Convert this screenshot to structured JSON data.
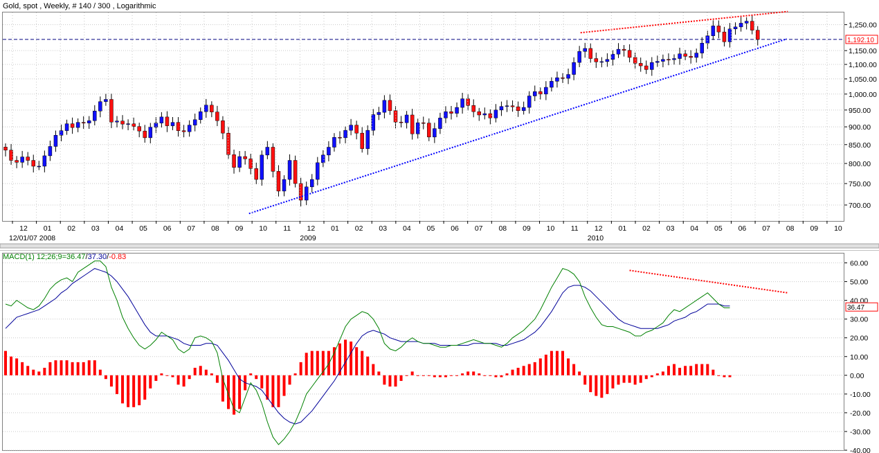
{
  "header": {
    "title": "Gold, spot , Weekly, # 140 / 300 , Logarithmic"
  },
  "colors": {
    "up_candle": "#1010ff",
    "down_candle": "#ff1010",
    "price_line": "#0000cc",
    "macd_line": "#008000",
    "signal_line": "#000099",
    "histogram": "#ff0000",
    "trendline_upper": "#ff0000",
    "trendline_lower": "#0000ff",
    "grid": "#c8c8c8"
  },
  "chart_data": [
    {
      "type": "candlestick",
      "title": "Gold, spot , Weekly, # 140 / 300 , Logarithmic",
      "scale": "logarithmic",
      "ylim": [
        665,
        1300
      ],
      "y_ticks": [
        700,
        750,
        800,
        850,
        900,
        950,
        1000,
        1050,
        1100,
        1150,
        1250
      ],
      "y_tick_labels": [
        "700.00",
        "750.00",
        "800.00",
        "850.00",
        "900.00",
        "950.00",
        "1,000.00",
        "1,050.00",
        "1,100.00",
        "1,150.00",
        "1,250.00"
      ],
      "last_price": 1192.1,
      "last_price_label": "1,192.10",
      "x_month_labels": [
        "12",
        "01",
        "02",
        "03",
        "04",
        "05",
        "06",
        "07",
        "08",
        "09",
        "10",
        "11",
        "12",
        "01",
        "02",
        "03",
        "04",
        "05",
        "06",
        "07",
        "08",
        "09",
        "10",
        "11",
        "12",
        "01",
        "02",
        "03",
        "04",
        "05",
        "06",
        "07",
        "08",
        "09",
        "10"
      ],
      "x_month_week": [
        0,
        4.3,
        8.6,
        12.9,
        17.2,
        21.5,
        25.8,
        30.1,
        34.4,
        38.7,
        43,
        47.3,
        51.6,
        55.9,
        60.2,
        64.5,
        68.8,
        73.1,
        77.4,
        81.7,
        86,
        90.3,
        94.6,
        98.9,
        103.2,
        107.5,
        111.8,
        116.1,
        120.4,
        124.7,
        129,
        133.3,
        137.6,
        141.9,
        146.2
      ],
      "x_sub_labels": [
        "12/01/07 2008",
        "2009",
        "2010"
      ],
      "x_sub_week": [
        0,
        51.6,
        103.2
      ],
      "week_start": "2007-12-01",
      "weekly_close": [
        835,
        808,
        803,
        817,
        808,
        793,
        793,
        820,
        845,
        876,
        889,
        909,
        898,
        913,
        911,
        918,
        947,
        976,
        983,
        914,
        917,
        908,
        909,
        901,
        888,
        869,
        899,
        911,
        929,
        903,
        913,
        889,
        886,
        905,
        921,
        945,
        965,
        944,
        918,
        882,
        823,
        790,
        818,
        812,
        787,
        760,
        822,
        843,
        780,
        732,
        760,
        808,
        750,
        711,
        742,
        760,
        802,
        822,
        843,
        870,
        869,
        890,
        905,
        882,
        839,
        890,
        936,
        943,
        980,
        948,
        914,
        912,
        935,
        880,
        912,
        911,
        871,
        895,
        926,
        945,
        940,
        958,
        985,
        964,
        945,
        935,
        939,
        926,
        950,
        961,
        963,
        960,
        948,
        958,
        994,
        1008,
        1000,
        1022,
        1042,
        1054,
        1052,
        1065,
        1107,
        1147,
        1158,
        1121,
        1109,
        1110,
        1118,
        1137,
        1155,
        1151,
        1125,
        1104,
        1095,
        1082,
        1107,
        1111,
        1118,
        1117,
        1121,
        1138,
        1129,
        1125,
        1141,
        1178,
        1206,
        1245,
        1221,
        1183,
        1233,
        1241,
        1256,
        1264,
        1228,
        1192
      ],
      "upper_trendline": {
        "from_week": 103.2,
        "from_price": 1218,
        "to_week": 140.4,
        "to_price": 1304
      },
      "lower_trendline": {
        "from_week": 43.7,
        "from_price": 681,
        "to_week": 140.2,
        "to_price": 1194
      }
    },
    {
      "type": "line",
      "title": "MACD(1) 12;26;9=36.47/37.30/-0.83",
      "title_parts": [
        "MACD(1) 12;26;9=",
        "36.47",
        "/",
        "37.30",
        "/",
        "-0.83"
      ],
      "ylim": [
        -40,
        65
      ],
      "y_ticks": [
        -40,
        -30,
        -20,
        -10,
        0,
        10,
        20,
        30,
        40,
        50,
        60
      ],
      "y_tick_labels": [
        "-40.00",
        "-30.00",
        "-20.00",
        "-10.00",
        "0.00",
        "10.00",
        "20.00",
        "30.00",
        "40.00",
        "50.00",
        "60.00"
      ],
      "last_value_label": "36.47",
      "series": [
        {
          "name": "MACD",
          "values": [
            38,
            37,
            40,
            38,
            36,
            35,
            37,
            41,
            46,
            49,
            51,
            52,
            50,
            55,
            57,
            59,
            61,
            61,
            58,
            47,
            40,
            31,
            25,
            20,
            16,
            14,
            16,
            19,
            23,
            21,
            19,
            14,
            12,
            14,
            20,
            21,
            20,
            18,
            12,
            -2,
            -10,
            -18,
            -20,
            -12,
            -4,
            -8,
            -15,
            -25,
            -33,
            -37,
            -34,
            -30,
            -25,
            -18,
            -10,
            -6,
            -2,
            2,
            6,
            12,
            19,
            26,
            30,
            32,
            34,
            33,
            30,
            25,
            17,
            14,
            13,
            15,
            18,
            20,
            18,
            17,
            17,
            16,
            15,
            15,
            16,
            16,
            17,
            18,
            19,
            18,
            17,
            17,
            16,
            15,
            17,
            20,
            22,
            24,
            27,
            30,
            35,
            41,
            47,
            52,
            57,
            56,
            54,
            50,
            42,
            36,
            31,
            27,
            26,
            26,
            25,
            24,
            23,
            21,
            21,
            23,
            24,
            26,
            28,
            32,
            35,
            34,
            36,
            38,
            40,
            42,
            44,
            41,
            38,
            36,
            36
          ]
        },
        {
          "name": "Signal",
          "values": [
            25,
            28,
            31,
            32,
            33,
            34,
            35,
            37,
            39,
            41,
            44,
            46,
            49,
            51,
            53,
            55,
            57,
            56,
            55,
            53,
            50,
            46,
            42,
            37,
            32,
            27,
            23,
            21,
            21,
            21,
            20,
            19,
            17,
            16,
            16,
            16,
            17,
            17,
            16,
            12,
            8,
            3,
            -2,
            -4,
            -5,
            -6,
            -8,
            -12,
            -16,
            -20,
            -23,
            -25,
            -26,
            -25,
            -22,
            -19,
            -15,
            -11,
            -7,
            -3,
            2,
            7,
            12,
            17,
            21,
            23,
            24,
            23,
            22,
            20,
            19,
            18,
            18,
            18,
            18,
            17,
            17,
            17,
            16,
            16,
            16,
            16,
            16,
            16,
            17,
            17,
            17,
            17,
            17,
            16,
            16,
            17,
            18,
            19,
            21,
            23,
            26,
            30,
            34,
            39,
            44,
            47,
            48,
            48,
            47,
            45,
            42,
            39,
            36,
            33,
            30,
            28,
            27,
            26,
            25,
            25,
            25,
            25,
            26,
            27,
            29,
            30,
            31,
            33,
            34,
            36,
            38,
            38,
            38,
            37,
            37
          ]
        },
        {
          "name": "Histogram",
          "values": [
            13,
            10,
            9,
            7,
            5,
            3,
            2,
            4,
            7,
            8,
            8,
            8,
            7,
            7,
            7,
            8,
            8,
            3,
            -2,
            -6,
            -10,
            -15,
            -17,
            -17,
            -16,
            -13,
            -7,
            -3,
            1,
            0,
            -1,
            -5,
            -6,
            -2,
            4,
            5,
            3,
            1,
            -4,
            -14,
            -18,
            -21,
            -18,
            -8,
            1,
            -2,
            -7,
            -13,
            -17,
            -17,
            -11,
            -5,
            1,
            7,
            12,
            13,
            13,
            13,
            13,
            15,
            17,
            19,
            18,
            15,
            13,
            10,
            6,
            2,
            -5,
            -6,
            -6,
            -3,
            0,
            2,
            0,
            0,
            0,
            -1,
            -1,
            -1,
            0,
            0,
            1,
            2,
            2,
            1,
            0,
            0,
            -1,
            -1,
            1,
            3,
            4,
            5,
            6,
            7,
            9,
            11,
            13,
            13,
            13,
            9,
            6,
            2,
            -5,
            -9,
            -11,
            -12,
            -10,
            -7,
            -5,
            -4,
            -4,
            -5,
            -4,
            -2,
            -1,
            1,
            2,
            5,
            6,
            4,
            5,
            5,
            6,
            6,
            6,
            3,
            0,
            -1,
            -1
          ]
        }
      ],
      "upper_trendline": {
        "from_week": 112,
        "from_value": 56,
        "to_week": 140.4,
        "to_value": 44
      }
    }
  ]
}
